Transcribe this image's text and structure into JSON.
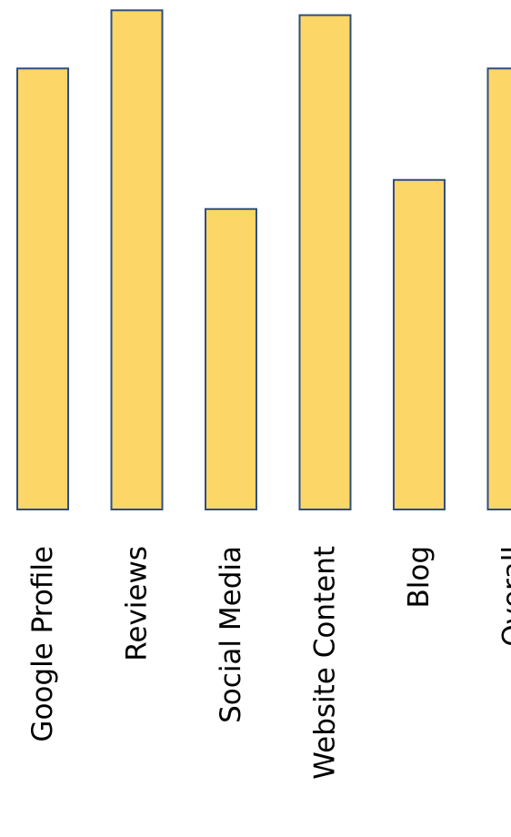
{
  "chart_data": {
    "type": "bar",
    "orientation": "vertical",
    "categories": [
      "Google Profile",
      "Reviews",
      "Social Media",
      "Website Content",
      "Blog",
      "Overall"
    ],
    "values": [
      91,
      103,
      62,
      102,
      68,
      91
    ],
    "ylim": [
      0,
      104
    ],
    "title": "",
    "xlabel": "",
    "ylabel": "",
    "grid": false,
    "legend": "none",
    "bar_color": "#FDD668",
    "bar_edge_color": "#2F4F7F",
    "label_color": "#000000"
  }
}
